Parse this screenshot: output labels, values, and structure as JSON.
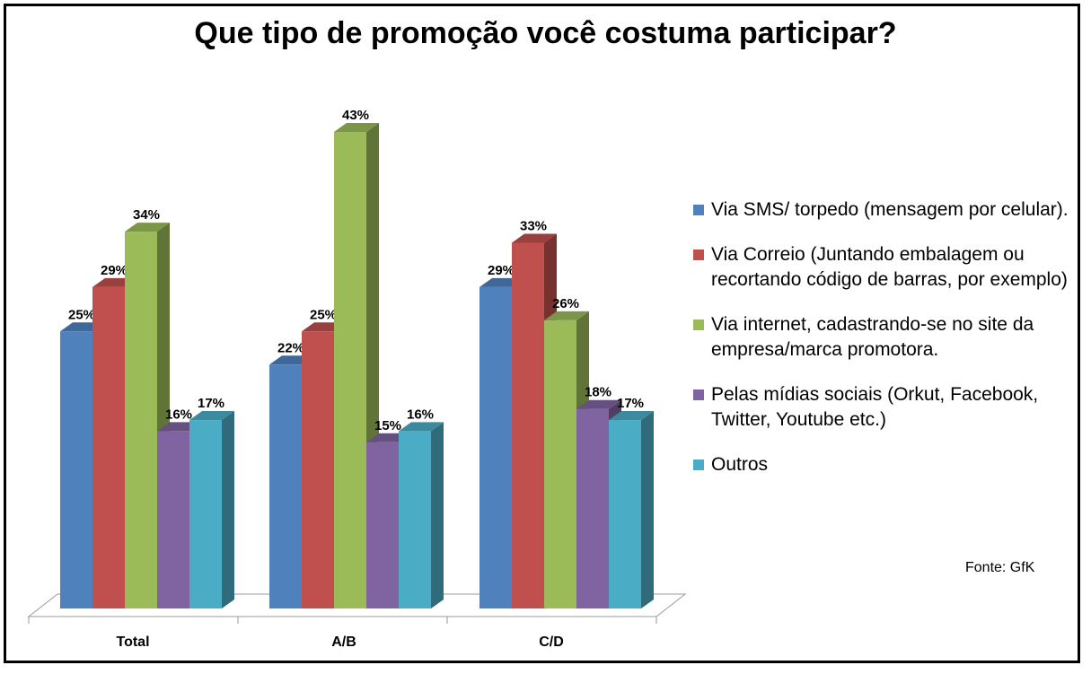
{
  "chart_data": {
    "type": "bar",
    "title": "Que tipo de promoção você costuma participar?",
    "categories": [
      "Total",
      "A/B",
      "C/D"
    ],
    "series": [
      {
        "name": "Via SMS/ torpedo (mensagem por celular).",
        "color": "#4F81BD",
        "values": [
          25,
          22,
          29
        ]
      },
      {
        "name": "Via Correio (Juntando embalagem ou recortando código de barras, por exemplo)",
        "color": "#C0504D",
        "values": [
          29,
          25,
          33
        ]
      },
      {
        "name": "Via internet, cadastrando-se no site da empresa/marca promotora.",
        "color": "#9BBB59",
        "values": [
          34,
          43,
          26
        ]
      },
      {
        "name": "Pelas mídias sociais (Orkut, Facebook, Twitter, Youtube etc.)",
        "color": "#8064A2",
        "values": [
          16,
          15,
          18
        ]
      },
      {
        "name": "Outros",
        "color": "#4BACC6",
        "values": [
          17,
          16,
          17
        ]
      }
    ],
    "value_suffix": "%",
    "ylim": [
      0,
      45
    ],
    "grid": false,
    "legend_position": "right",
    "source": "Fonte: GfK"
  }
}
